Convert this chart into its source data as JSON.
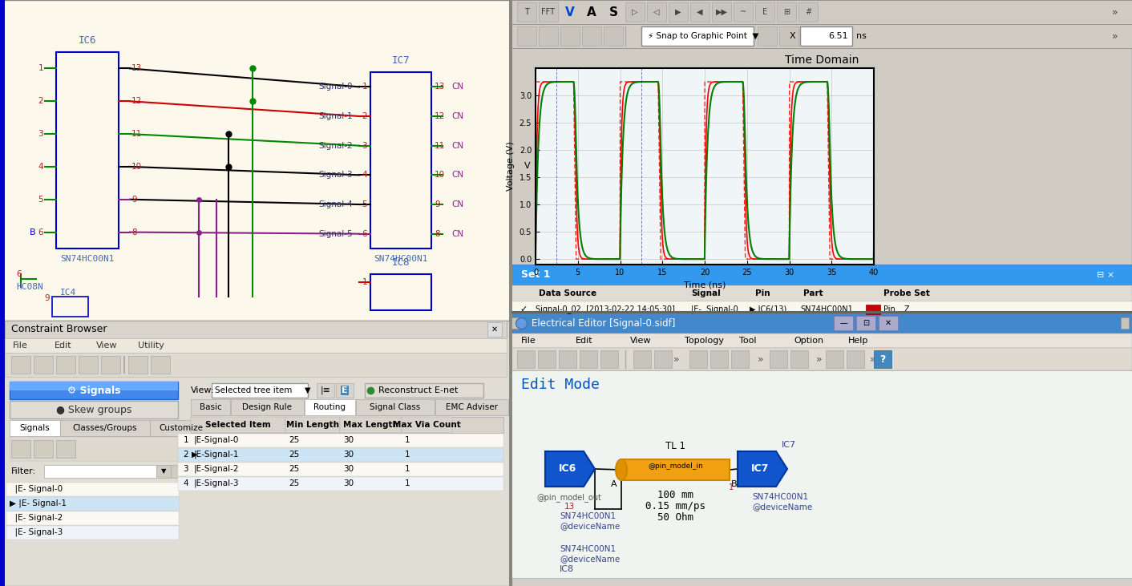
{
  "schematic_bg": "#fdf8ec",
  "toolbar_bg": "#d4d0c8",
  "panel_bg": "#e8e4d8",
  "white": "#ffffff",
  "constraint_bg": "#e8e4d8",
  "elec_bg": "#f0f4ee",
  "pin_color_red": "#cc0000",
  "pin_color_green": "#008800",
  "pin_color_black": "#000000",
  "pin_color_purple": "#882288",
  "signal_label_color": "#333366",
  "ic_label_color": "#4466aa",
  "pin_num_color": "#aa2222",
  "time_domain_title": "Time Domain",
  "voltage_label": "Voltage (V)",
  "time_label": "Time (ns)",
  "constraint_title": "Constraint Browser",
  "signals_btn": "Signals",
  "skew_btn": "Skew groups",
  "view_label": "View:",
  "filter_label": "Filter:",
  "table_headers": [
    "Selected Item",
    "Min Length",
    "Max Length",
    "Max Via Count"
  ],
  "table_rows": [
    [
      "E-Signal-0",
      "25",
      "30",
      "1"
    ],
    [
      "E-Signal-1",
      "25",
      "30",
      "1"
    ],
    [
      "E-Signal-2",
      "25",
      "30",
      "1"
    ],
    [
      "E-Signal-3",
      "25",
      "30",
      "1"
    ]
  ],
  "electrical_title": "Electrical Editor [Signal-0.sidf]",
  "edit_mode": "Edit Mode",
  "tl_label": "TL 1",
  "tl_detail1": "100 mm",
  "tl_detail2": "0.15 mm/ps",
  "tl_detail3": "50 Ohm",
  "ic7_label": "IC7",
  "ic6_label": "IC6",
  "sn_label1": "SN74HC00N1",
  "sn_devname": "SN74HC00N1\n@deviceName",
  "set1_label": "Set 1",
  "snap_label": "Snap to Graphic Point",
  "x_value": "6.51",
  "ns_label": "ns",
  "pin_model_in": "@pin_model_in",
  "pin_model_out": "@pin_model_out",
  "menu_file_edit": [
    "File",
    "Edit",
    "View",
    "Topology",
    "Tool",
    "Option",
    "Help"
  ],
  "cb_menu": [
    "File",
    "Edit",
    "View",
    "Utility"
  ],
  "ic7_right_labels": [
    "13",
    "12",
    "11",
    "10",
    "9",
    "8"
  ],
  "ic6_left_labels": [
    "1",
    "2",
    "3",
    "4",
    "5",
    "6"
  ],
  "ic6_right_labels": [
    "13",
    "12",
    "11",
    "10",
    "9",
    "8"
  ],
  "ic7_signals": [
    "Signal-0",
    "Signal-1",
    "Signal-2",
    "Signal-3",
    "Signal-4",
    "Signal-5"
  ],
  "ic7_left_labels": [
    "1",
    "2",
    "3",
    "4",
    "5",
    "6"
  ],
  "cn_labels": [
    "CN",
    "CN",
    "CN",
    "CN",
    "CN",
    "CN"
  ]
}
